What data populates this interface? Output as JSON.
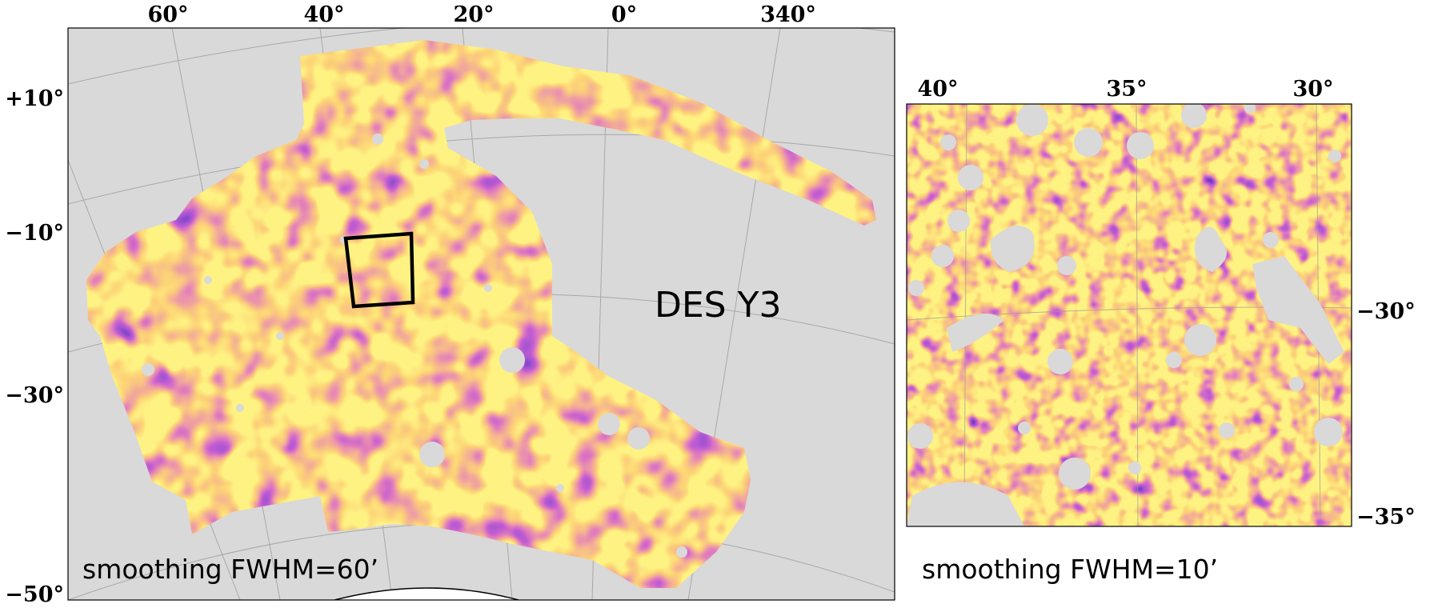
{
  "left_panel": {
    "ra_ticks": [
      "60°",
      "40°",
      "20°",
      "0°",
      "340°"
    ],
    "dec_ticks": [
      "+10°",
      "−10°",
      "−30°",
      "−50°"
    ],
    "survey_label": "DES Y3",
    "smoothing_label": "smoothing FWHM=60’"
  },
  "right_panel": {
    "ra_ticks": [
      "40°",
      "35°",
      "30°"
    ],
    "dec_ticks": [
      "−30°",
      "−35°"
    ],
    "smoothing_label": "smoothing FWHM=10’"
  },
  "colors": {
    "mask_gray": "#d9d9d9",
    "colormap": [
      "#2d0a8c",
      "#5a17a4",
      "#8b1ca4",
      "#c6397b",
      "#e66b4d",
      "#f9a72d",
      "#fbe23b"
    ]
  }
}
